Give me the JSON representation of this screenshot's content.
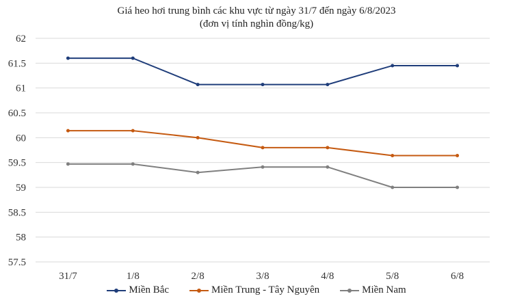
{
  "chart_data": {
    "type": "line",
    "title": "Giá heo hơi trung bình các khu vực từ ngày 31/7 đến ngày 6/8/2023",
    "subtitle": "(đơn vị tính nghìn đồng/kg)",
    "categories": [
      "31/7",
      "1/8",
      "2/8",
      "3/8",
      "4/8",
      "5/8",
      "6/8"
    ],
    "ylim": [
      57.5,
      62
    ],
    "yticks": [
      "57.5",
      "58",
      "58.5",
      "59",
      "59.5",
      "60",
      "60.5",
      "61",
      "61.5",
      "62"
    ],
    "grid": true,
    "legend_position": "bottom",
    "series": [
      {
        "name": "Miền Bắc",
        "color": "#1f3d7a",
        "values": [
          61.6,
          61.6,
          61.07,
          61.07,
          61.07,
          61.45,
          61.45
        ]
      },
      {
        "name": "Miền Trung - Tây Nguyên",
        "color": "#c55a11",
        "values": [
          60.14,
          60.14,
          60.0,
          59.8,
          59.8,
          59.64,
          59.64
        ]
      },
      {
        "name": "Miền Nam",
        "color": "#7f7f7f",
        "values": [
          59.47,
          59.47,
          59.3,
          59.41,
          59.41,
          59.0,
          59.0
        ]
      }
    ]
  }
}
